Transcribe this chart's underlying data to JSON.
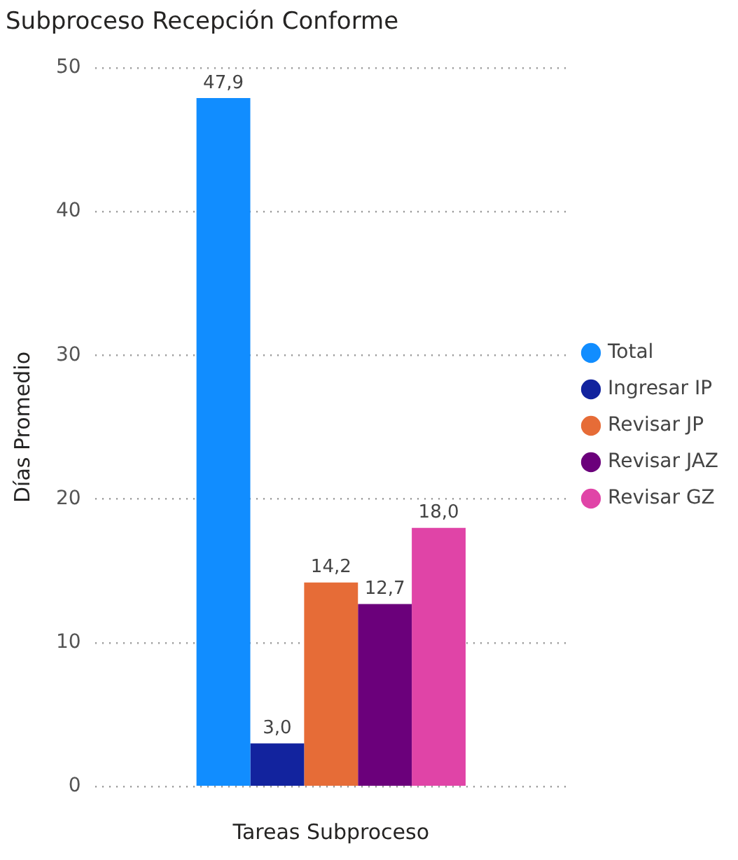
{
  "chart_data": {
    "type": "bar",
    "title": "Subproceso Recepción Conforme",
    "xlabel": "Tareas Subproceso",
    "ylabel": "Días Promedio",
    "categories": [
      null
    ],
    "series": [
      {
        "name": "Total",
        "color": "#118dff",
        "values": [
          47.9
        ],
        "value_labels": [
          "47,9"
        ]
      },
      {
        "name": "Ingresar IP",
        "color": "#12239e",
        "values": [
          3.0
        ],
        "value_labels": [
          "3,0"
        ]
      },
      {
        "name": "Revisar JP",
        "color": "#e66c37",
        "values": [
          14.2
        ],
        "value_labels": [
          "14,2"
        ]
      },
      {
        "name": "Revisar JAZ",
        "color": "#6b007b",
        "values": [
          12.7
        ],
        "value_labels": [
          "12,7"
        ]
      },
      {
        "name": "Revisar GZ",
        "color": "#e044a7",
        "values": [
          18.0
        ],
        "value_labels": [
          "18,0"
        ]
      }
    ],
    "ylim": [
      0,
      50
    ],
    "yticks": [
      0,
      10,
      20,
      30,
      40,
      50
    ],
    "grid": "y",
    "legend": "right"
  }
}
